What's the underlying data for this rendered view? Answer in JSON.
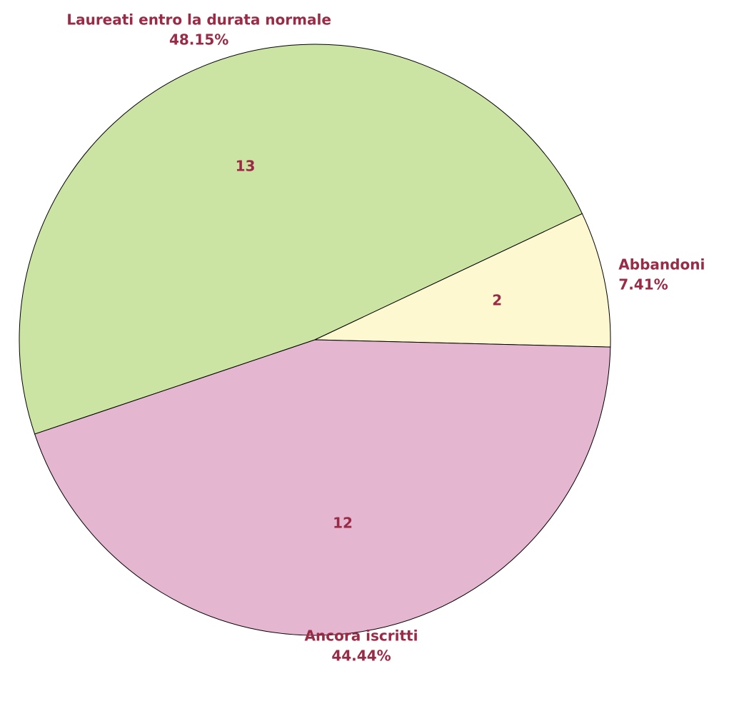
{
  "chart_data": {
    "type": "pie",
    "categories": [
      "Laureati entro la durata normale",
      "Abbandoni",
      "Ancora iscritti"
    ],
    "values": [
      13,
      2,
      12
    ],
    "percent_labels": [
      "48.15%",
      "7.41%",
      "44.44%"
    ],
    "colors": [
      "#cce4a3",
      "#fdf8cf",
      "#e5b6cf"
    ]
  }
}
